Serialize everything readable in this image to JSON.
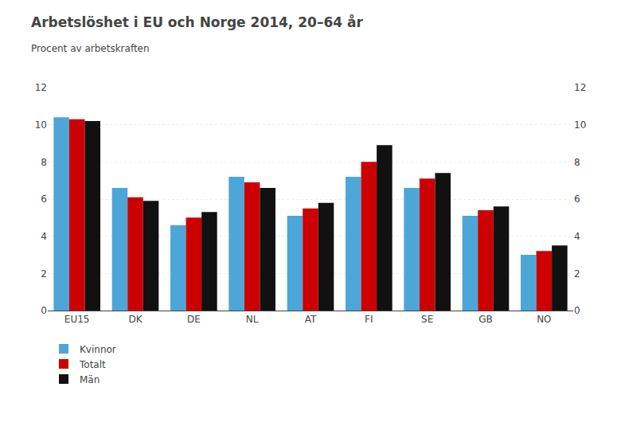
{
  "chart_data": {
    "type": "bar",
    "title": "Arbetslöshet i EU och Norge 2014, 20–64 år",
    "subtitle": "Procent av arbetskraften",
    "categories": [
      "EU15",
      "DK",
      "DE",
      "NL",
      "AT",
      "FI",
      "SE",
      "GB",
      "NO"
    ],
    "series": [
      {
        "name": "Kvinnor",
        "color": "#4da6d8",
        "values": [
          10.4,
          6.6,
          4.6,
          7.2,
          5.1,
          7.2,
          6.6,
          5.1,
          3.0
        ]
      },
      {
        "name": "Totalt",
        "color": "#cc0000",
        "values": [
          10.3,
          6.1,
          5.0,
          6.9,
          5.5,
          8.0,
          7.1,
          5.4,
          3.2
        ]
      },
      {
        "name": "Män",
        "color": "#111111",
        "values": [
          10.2,
          5.9,
          5.3,
          6.6,
          5.8,
          8.9,
          7.4,
          5.6,
          3.5
        ]
      }
    ],
    "ylim": [
      0,
      12
    ],
    "yticks": [
      0,
      2,
      4,
      6,
      8,
      10,
      12
    ],
    "y2lim": [
      0,
      12
    ],
    "y2ticks": [
      0,
      2,
      4,
      6,
      8,
      10,
      12
    ],
    "grid": true,
    "legend": "bottom"
  }
}
